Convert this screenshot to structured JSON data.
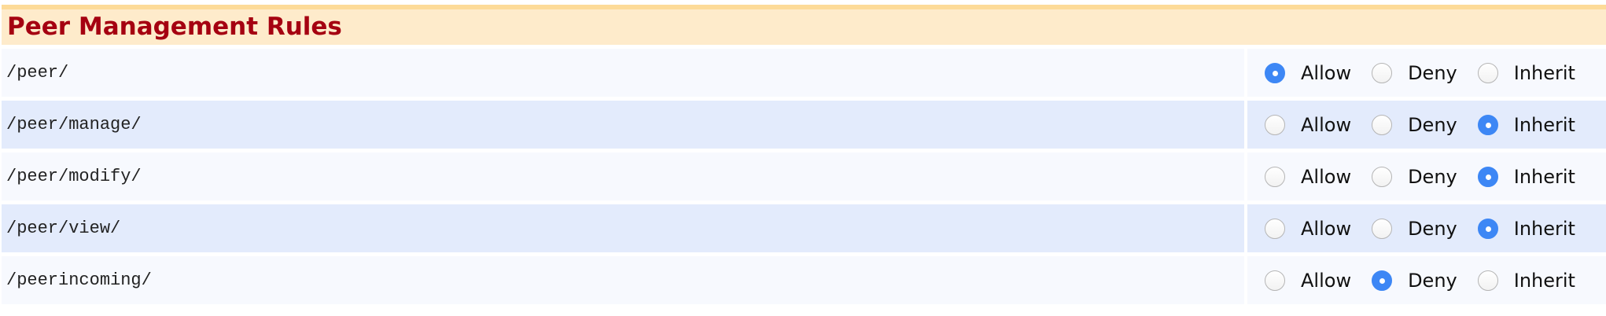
{
  "title": "Peer Management Rules",
  "colors": {
    "title": "#a50011",
    "header_bg": "#feebcb",
    "header_border": "#fddb98",
    "row_odd": "#f7f9fe",
    "row_even": "#e3ebfc",
    "radio_selected": "#3d87f5"
  },
  "options": [
    "Allow",
    "Deny",
    "Inherit"
  ],
  "rules": [
    {
      "path": "/peer/",
      "selected": "Allow"
    },
    {
      "path": "/peer/manage/",
      "selected": "Inherit"
    },
    {
      "path": "/peer/modify/",
      "selected": "Inherit"
    },
    {
      "path": "/peer/view/",
      "selected": "Inherit"
    },
    {
      "path": "/peerincoming/",
      "selected": "Deny"
    }
  ]
}
